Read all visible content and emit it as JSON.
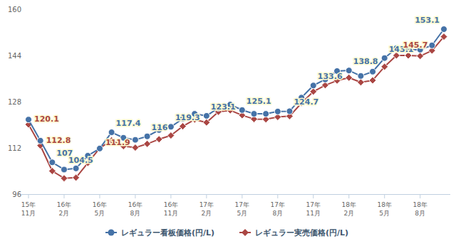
{
  "chart_data": {
    "type": "line",
    "categories": [
      "15年\n11月",
      null,
      null,
      "16年\n2月",
      null,
      null,
      "16年\n5月",
      null,
      null,
      "16年\n8月",
      null,
      null,
      "16年\n11月",
      null,
      null,
      "17年\n2月",
      null,
      null,
      "17年\n5月",
      null,
      null,
      "17年\n8月",
      null,
      null,
      "17年\n11月",
      null,
      null,
      "18年\n2月",
      null,
      null,
      "18年\n5月",
      null,
      null,
      "18年\n8月",
      null,
      null
    ],
    "series": [
      {
        "name": "レギュラー看板価格(円/L)",
        "color": "#4572a7",
        "marker": "circle",
        "values": [
          121.8,
          114.5,
          107,
          104.5,
          104.9,
          109.3,
          111.8,
          117.4,
          115.5,
          114.8,
          116,
          118.2,
          119.3,
          122.1,
          123.8,
          123.1,
          125.8,
          127.0,
          125.1,
          123.8,
          123.8,
          124.6,
          124.7,
          129.4,
          133.6,
          135.7,
          138.6,
          138.8,
          136.9,
          138.4,
          143.1,
          146.5,
          146.0,
          146.0,
          147.5,
          153.1
        ],
        "value_labels": [
          null,
          null,
          "107",
          "104.5",
          null,
          null,
          null,
          "117.4",
          null,
          null,
          "116",
          null,
          "119.3",
          null,
          null,
          "123.1",
          null,
          null,
          "125.1",
          null,
          null,
          null,
          "124.7",
          null,
          "133.6",
          null,
          null,
          "138.8",
          null,
          null,
          "143.1",
          null,
          null,
          null,
          null,
          "153.1"
        ]
      },
      {
        "name": "レギュラー実売価格(円/L)",
        "color": "#aa4643",
        "marker": "diamond",
        "values": [
          120.1,
          112.8,
          104.0,
          101.5,
          101.7,
          106.8,
          111.9,
          114.6,
          112.6,
          112.1,
          113.4,
          115.0,
          116.3,
          119.5,
          121.8,
          120.8,
          124.5,
          125.0,
          123.3,
          122.0,
          121.9,
          122.7,
          123.0,
          127.5,
          131.5,
          133.7,
          135.3,
          136.3,
          134.7,
          135.4,
          140.1,
          144.0,
          144.0,
          143.8,
          145.7,
          150.5
        ],
        "value_labels": [
          "120.1",
          "112.8",
          null,
          null,
          null,
          null,
          "111.9",
          null,
          null,
          null,
          null,
          null,
          null,
          null,
          null,
          null,
          null,
          null,
          null,
          null,
          null,
          null,
          null,
          null,
          null,
          null,
          null,
          null,
          null,
          null,
          null,
          null,
          null,
          null,
          "145.7",
          null
        ]
      }
    ],
    "ylim": [
      96,
      160
    ],
    "yticks": [
      96,
      112,
      128,
      144,
      160
    ],
    "grid": false,
    "legend": "bottom",
    "data_labels": true
  }
}
